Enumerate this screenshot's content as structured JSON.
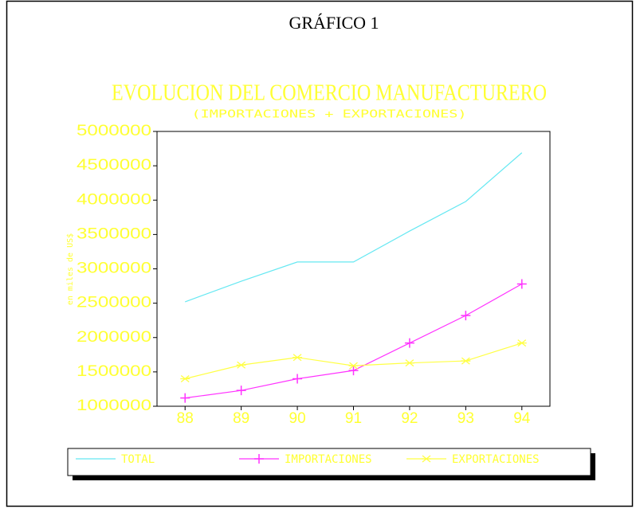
{
  "header": "GRÁFICO 1",
  "chart_data": {
    "type": "line",
    "title": "EVOLUCION DEL COMERCIO MANUFACTURERO",
    "subtitle": "(IMPORTACIONES + EXPORTACIONES)",
    "y_label": "en miles de US$",
    "categories": [
      "88",
      "89",
      "90",
      "91",
      "92",
      "93",
      "94"
    ],
    "series": [
      {
        "name": "TOTAL",
        "color": "#66e8f2",
        "marker": "none",
        "values": [
          2520000,
          2820000,
          3100000,
          3100000,
          3550000,
          3980000,
          4690000
        ]
      },
      {
        "name": "IMPORTACIONES",
        "color": "#ff33ff",
        "marker": "plus",
        "values": [
          1120000,
          1230000,
          1400000,
          1520000,
          1920000,
          2320000,
          2780000
        ]
      },
      {
        "name": "EXPORTACIONES",
        "color": "#ffff44",
        "marker": "star",
        "values": [
          1400000,
          1600000,
          1710000,
          1590000,
          1630000,
          1660000,
          1920000
        ]
      }
    ],
    "ylim": [
      1000000,
      5000000
    ],
    "yticks": [
      1000000,
      1500000,
      2000000,
      2500000,
      3000000,
      3500000,
      4000000,
      4500000,
      5000000
    ],
    "grid": false,
    "legend": "bottom",
    "text_color": "#ffff33"
  }
}
